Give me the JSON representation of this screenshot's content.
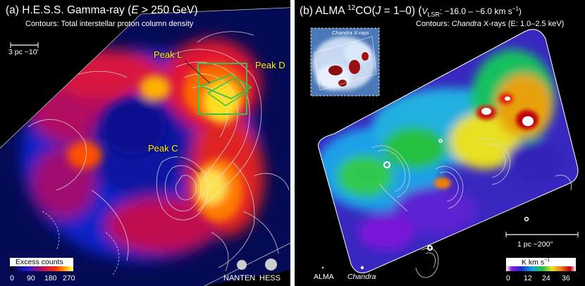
{
  "panel_a": {
    "title_prefix": "(a) H.E.S.S. Gamma-ray (",
    "title_var": "E",
    "title_suffix": " > 250 GeV)",
    "subtitle": "Contours: Total interstellar proton column density",
    "scale_bar": "3 pc ~10'",
    "peaks": {
      "l": "Peak L",
      "d": "Peak D",
      "c": "Peak C"
    },
    "colorbar": {
      "label": "Excess counts",
      "ticks": [
        "0",
        "90",
        "180",
        "270"
      ]
    },
    "beams": {
      "nanten": "NANTEN",
      "hess": "HESS"
    }
  },
  "panel_b": {
    "title_prefix": "(b) ALMA ",
    "title_sup": "12",
    "title_mid": "CO(",
    "title_var": "J",
    "title_trans": " = 1–0) (",
    "title_vlsr": "V",
    "title_vlsr_sub": "LSR",
    "title_suffix": ": −16.0 – −6.0 km s",
    "title_exp": "−1",
    "title_close": ")",
    "subtitle_prefix": "Contours: ",
    "subtitle_italic": "Chandra",
    "subtitle_suffix": " X-rays (E: 1.0–2.5 keV)",
    "inset_label": "Chandra X-rays",
    "scale_bar": "1 pc ~200''",
    "colorbar": {
      "label": "K km s",
      "label_exp": "−1",
      "ticks": [
        "0",
        "12",
        "24",
        "36"
      ]
    },
    "beams": {
      "alma": "ALMA",
      "chandra": "Chandra"
    }
  },
  "colors": {
    "peak_text": "#ffef2a",
    "peak_box": "#33c24a"
  }
}
